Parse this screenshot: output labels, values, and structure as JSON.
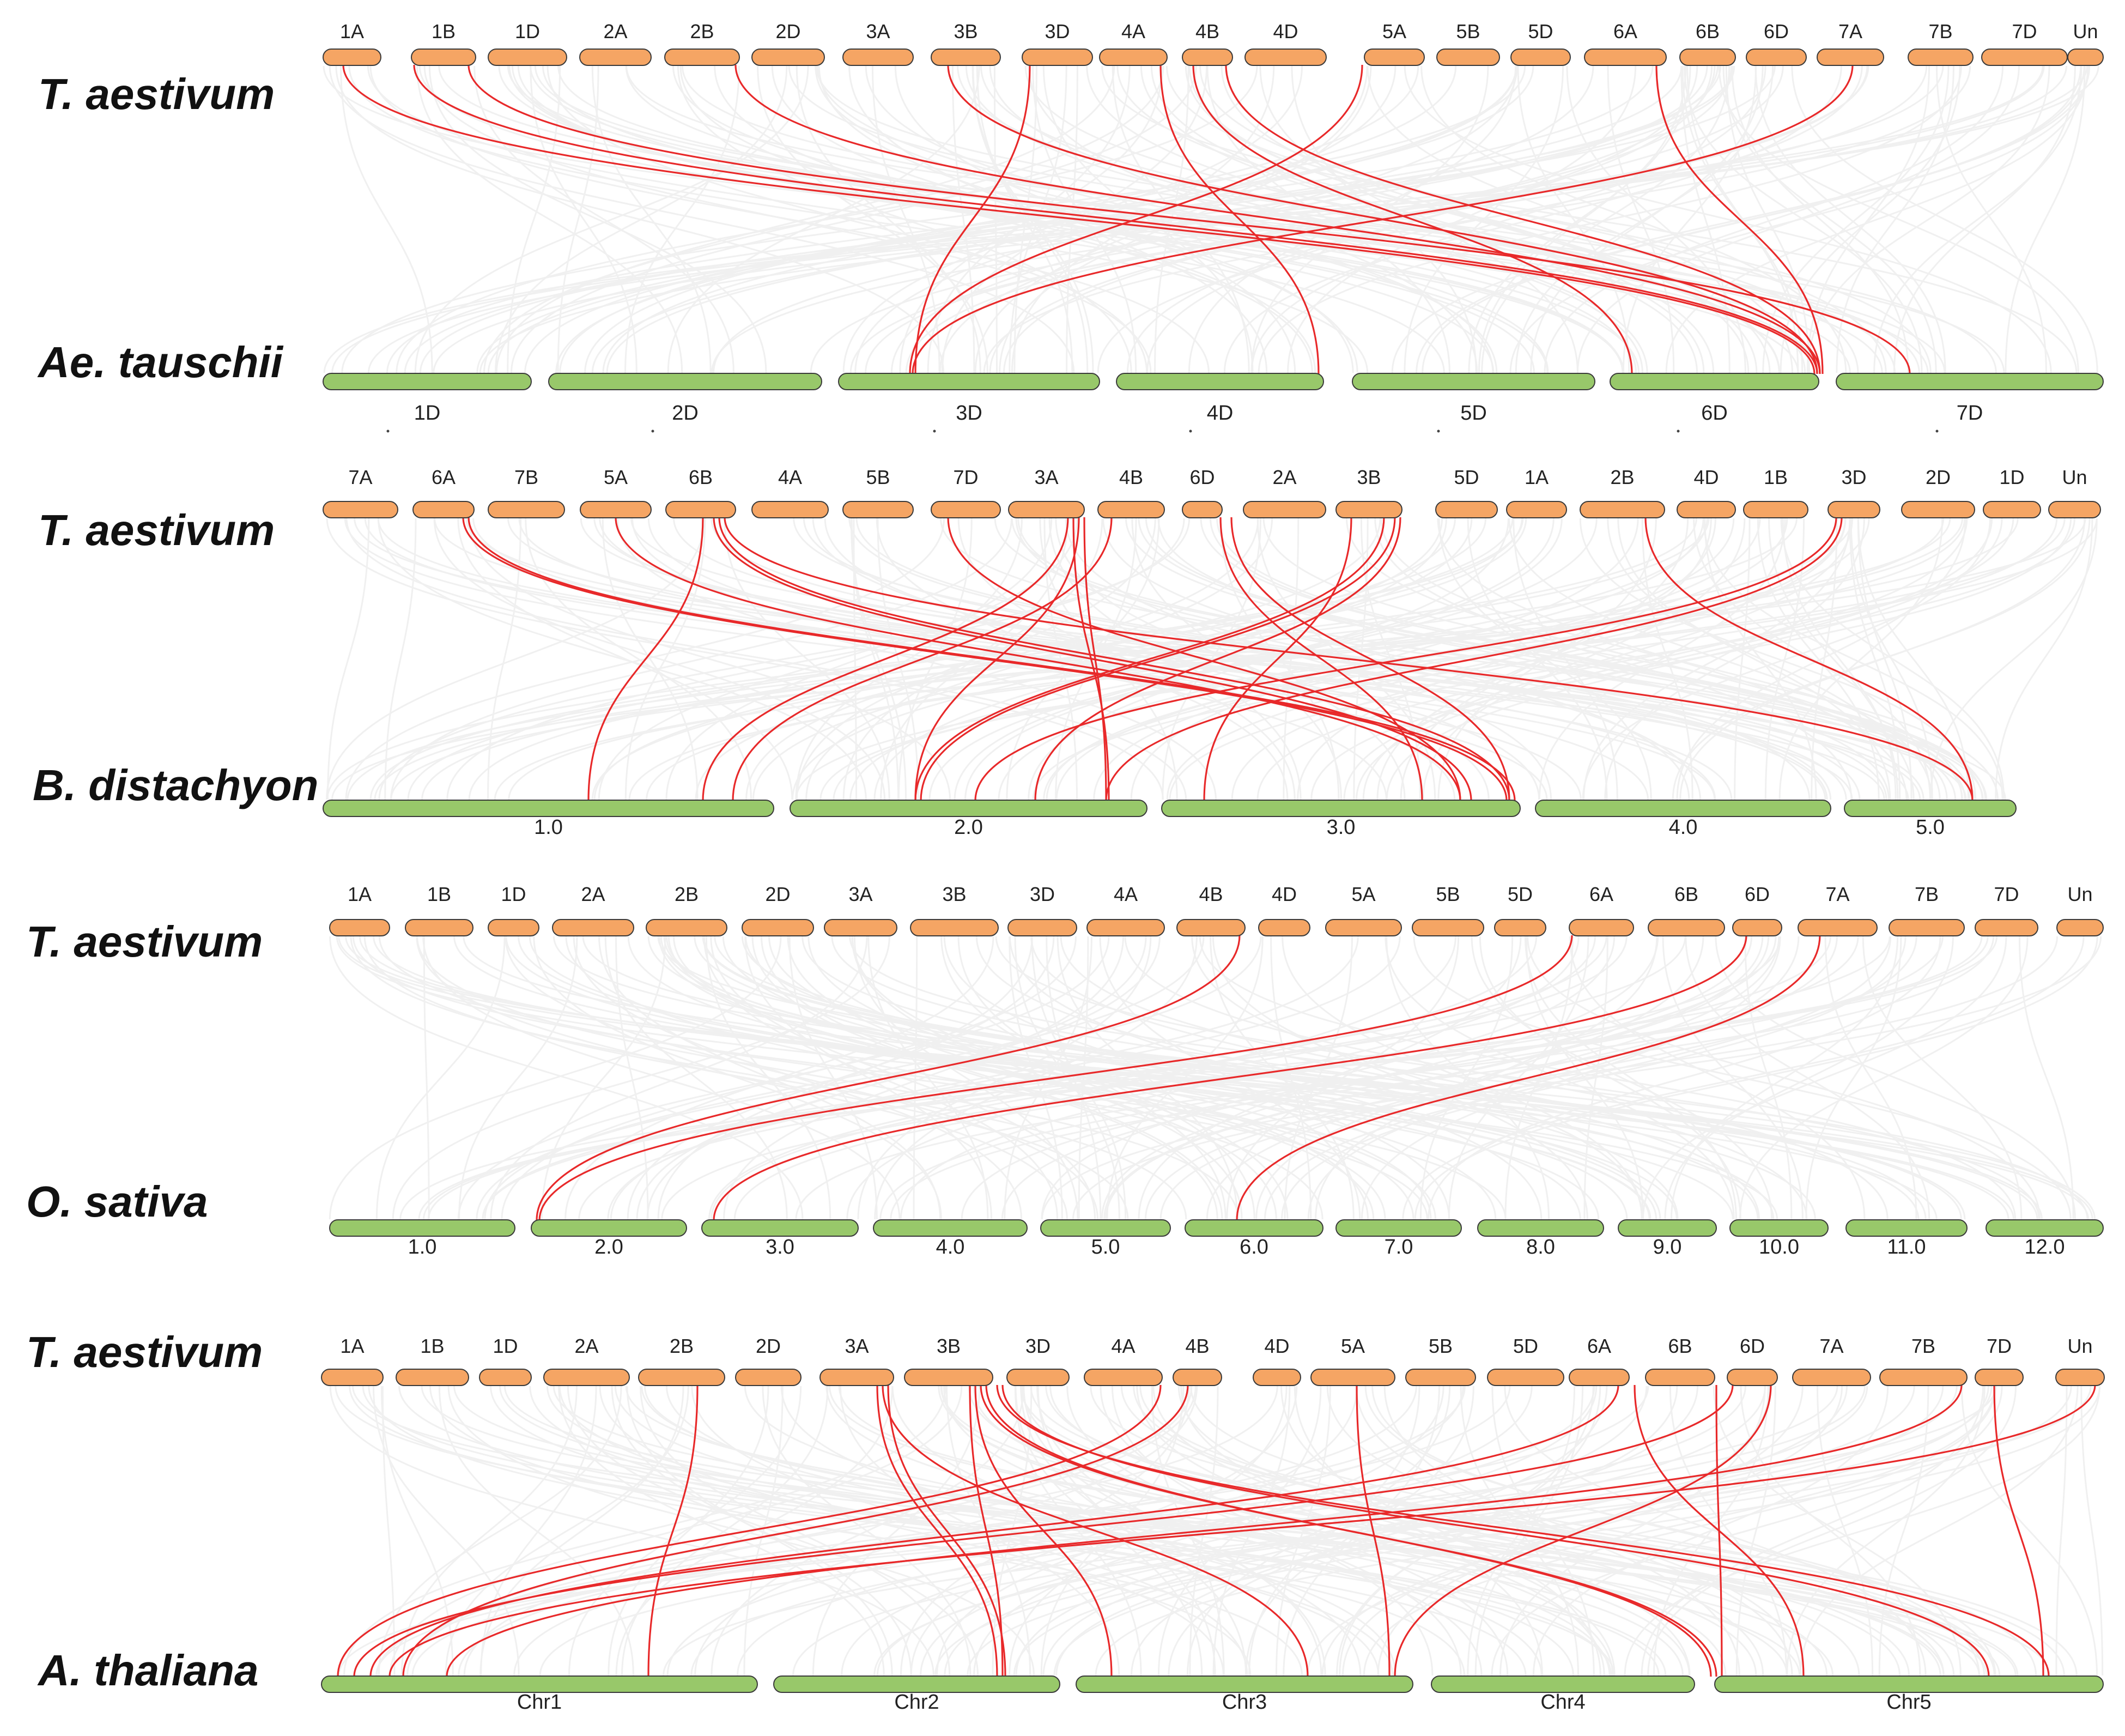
{
  "colors": {
    "query_chromosome": "#f5a564",
    "target_chromosome": "#98c86a",
    "background_link": "#e4e4e4",
    "highlight_link": "#e8292a"
  },
  "panels": [
    {
      "top_species": "T. aestivum",
      "bottom_species": "Ae. tauschii",
      "top_chromosomes": [
        "1A",
        "1B",
        "1D",
        "2A",
        "2B",
        "2D",
        "3A",
        "3B",
        "3D",
        "4A",
        "4B",
        "4D",
        "5A",
        "5B",
        "5D",
        "6A",
        "6B",
        "6D",
        "7A",
        "7B",
        "7D",
        "Un"
      ],
      "bottom_chromosomes": [
        "1D",
        "2D",
        "3D",
        "4D",
        "5D",
        "6D",
        "7D"
      ]
    },
    {
      "top_species": "T. aestivum",
      "bottom_species": "B. distachyon",
      "top_chromosomes": [
        "7A",
        "6A",
        "7B",
        "5A",
        "6B",
        "4A",
        "5B",
        "7D",
        "3A",
        "4B",
        "6D",
        "2A",
        "3B",
        "5D",
        "1A",
        "2B",
        "4D",
        "1B",
        "3D",
        "2D",
        "1D",
        "Un"
      ],
      "bottom_chromosomes": [
        "1.0",
        "2.0",
        "3.0",
        "4.0",
        "5.0"
      ]
    },
    {
      "top_species": "T. aestivum",
      "bottom_species": "O. sativa",
      "top_chromosomes": [
        "1A",
        "1B",
        "1D",
        "2A",
        "2B",
        "2D",
        "3A",
        "3B",
        "3D",
        "4A",
        "4B",
        "4D",
        "5A",
        "5B",
        "5D",
        "6A",
        "6B",
        "6D",
        "7A",
        "7B",
        "7D",
        "Un"
      ],
      "bottom_chromosomes": [
        "1.0",
        "2.0",
        "3.0",
        "4.0",
        "5.0",
        "6.0",
        "7.0",
        "8.0",
        "9.0",
        "10.0",
        "11.0",
        "12.0"
      ]
    },
    {
      "top_species": "T. aestivum",
      "bottom_species": "A. thaliana",
      "top_chromosomes": [
        "1A",
        "1B",
        "1D",
        "2A",
        "2B",
        "2D",
        "3A",
        "3B",
        "3D",
        "4A",
        "4B",
        "4D",
        "5A",
        "5B",
        "5D",
        "6A",
        "6B",
        "6D",
        "7A",
        "7B",
        "7D",
        "Un"
      ],
      "bottom_chromosomes": [
        "Chr1",
        "Chr2",
        "Chr3",
        "Chr4",
        "Chr5"
      ]
    }
  ]
}
